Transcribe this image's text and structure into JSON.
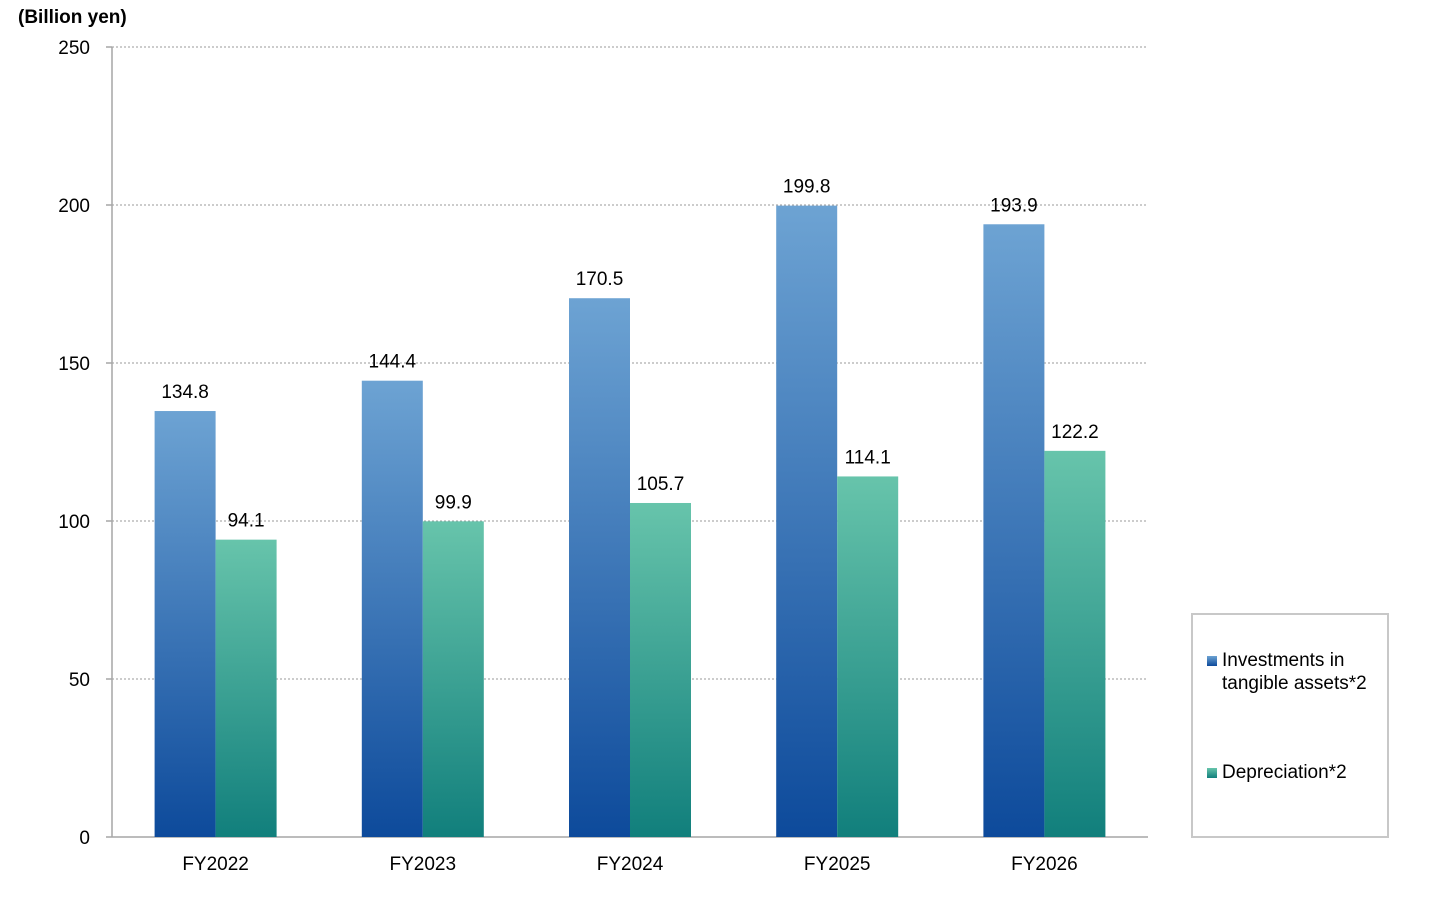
{
  "chart_data": {
    "type": "bar",
    "unit_label": "(Billion yen)",
    "categories": [
      "FY2022",
      "FY2023",
      "FY2024",
      "FY2025",
      "FY2026"
    ],
    "series": [
      {
        "name": "Investments in tangible assets*2",
        "values": [
          134.8,
          144.4,
          170.5,
          199.8,
          193.9
        ],
        "value_labels": [
          "134.8",
          "144.4",
          "170.5",
          "199.8",
          "193.9"
        ],
        "color_top": "#6da3d3",
        "color_bottom": "#0d4a9b"
      },
      {
        "name": "Depreciation*2",
        "values": [
          94.1,
          99.9,
          105.7,
          114.1,
          122.2
        ],
        "value_labels": [
          "94.1",
          "99.9",
          "105.7",
          "114.1",
          "122.2"
        ],
        "color_top": "#67c4ab",
        "color_bottom": "#117f7c"
      }
    ],
    "ylim": [
      0,
      250
    ],
    "yticks": [
      0,
      50,
      100,
      150,
      200,
      250
    ],
    "grid": true,
    "grid_style": "dotted",
    "legend_position": "right"
  }
}
